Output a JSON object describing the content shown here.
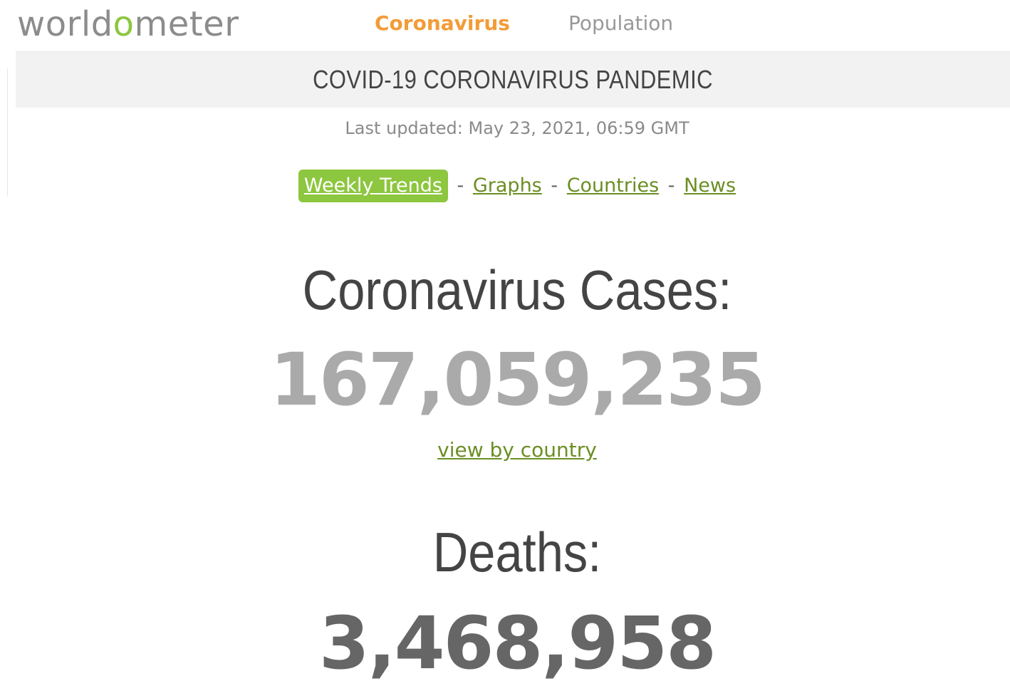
{
  "header": {
    "logo_prefix": "world",
    "logo_accent": "o",
    "logo_suffix": "meter",
    "nav": {
      "coronavirus": "Coronavirus",
      "population": "Population"
    }
  },
  "title_bar": {
    "title": "COVID-19 CORONAVIRUS PANDEMIC"
  },
  "last_updated": "Last updated: May 23, 2021, 06:59 GMT",
  "links": {
    "weekly_trends": "Weekly Trends",
    "graphs": "Graphs",
    "countries": "Countries",
    "news": "News",
    "separator": "-"
  },
  "cases": {
    "label": "Coronavirus Cases:",
    "value": "167,059,235",
    "view_link": "view by country"
  },
  "deaths": {
    "label": "Deaths:",
    "value": "3,468,958"
  },
  "colors": {
    "brand_green": "#8dc63f",
    "link_green": "#6b8e23",
    "nav_active_orange": "#f29c38",
    "title_bar_bg": "#f2f2f2",
    "cases_number": "#aaaaaa",
    "deaths_number": "#666666"
  }
}
